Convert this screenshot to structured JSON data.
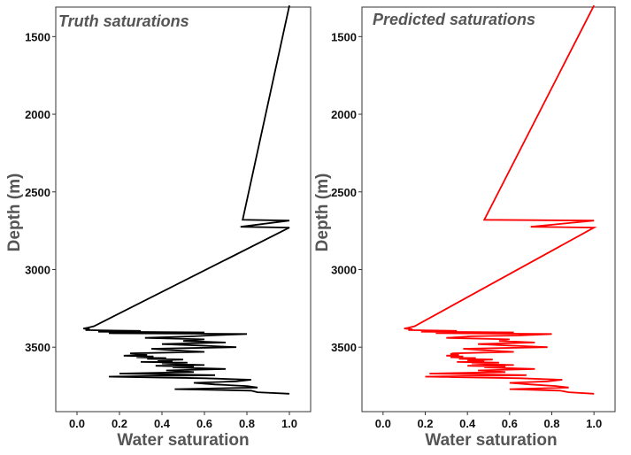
{
  "chart_data": [
    {
      "type": "line",
      "title": "Truth saturations",
      "xlabel": "Water saturation",
      "ylabel": "Depth (m)",
      "xlim": [
        -0.1,
        1.1
      ],
      "ylim": [
        3915,
        1310
      ],
      "y_inverted": true,
      "x_ticks": [
        "0.0",
        "0.2",
        "0.4",
        "0.6",
        "0.8",
        "1.0"
      ],
      "y_ticks": [
        "1500",
        "2000",
        "2500",
        "3000",
        "3500"
      ],
      "grid": false,
      "color": "#000000",
      "series": [
        {
          "depth": [
            1300,
            2680,
            2685,
            2725,
            2730,
            3365,
            3375,
            3380,
            3385,
            3390,
            3395,
            3400,
            3405,
            3410,
            3415,
            3425,
            3430,
            3440,
            3450,
            3460,
            3470,
            3480,
            3490,
            3500,
            3510,
            3520,
            3530,
            3540,
            3545,
            3550,
            3555,
            3560,
            3565,
            3570,
            3575,
            3580,
            3585,
            3590,
            3595,
            3600,
            3605,
            3610,
            3615,
            3620,
            3625,
            3630,
            3640,
            3650,
            3660,
            3670,
            3680,
            3690,
            3700,
            3710,
            3720,
            3730,
            3740,
            3750,
            3760,
            3770,
            3780,
            3790,
            3800
          ],
          "saturation": [
            1.0,
            0.78,
            1.0,
            0.77,
            1.0,
            0.08,
            0.05,
            0.03,
            0.06,
            0.04,
            0.3,
            0.1,
            0.6,
            0.15,
            0.8,
            0.62,
            0.55,
            0.32,
            0.6,
            0.5,
            0.7,
            0.4,
            0.58,
            0.75,
            0.35,
            0.45,
            0.6,
            0.25,
            0.3,
            0.33,
            0.22,
            0.36,
            0.28,
            0.42,
            0.33,
            0.5,
            0.38,
            0.45,
            0.3,
            0.52,
            0.4,
            0.48,
            0.6,
            0.37,
            0.55,
            0.45,
            0.7,
            0.42,
            0.55,
            0.2,
            0.65,
            0.15,
            0.6,
            0.82,
            0.75,
            0.55,
            0.65,
            0.8,
            0.85,
            0.46,
            0.82,
            0.85,
            1.0
          ]
        }
      ]
    },
    {
      "type": "line",
      "title": "Predicted saturations",
      "xlabel": "Water saturation",
      "ylabel": "Depth (m)",
      "xlim": [
        -0.1,
        1.1
      ],
      "ylim": [
        3915,
        1310
      ],
      "y_inverted": true,
      "x_ticks": [
        "0.0",
        "0.2",
        "0.4",
        "0.6",
        "0.8",
        "1.0"
      ],
      "y_ticks": [
        "1500",
        "2000",
        "2500",
        "3000",
        "3500"
      ],
      "grid": false,
      "color": "#ff0000",
      "series": [
        {
          "depth": [
            1300,
            2680,
            2685,
            2725,
            2730,
            3365,
            3375,
            3380,
            3385,
            3390,
            3395,
            3400,
            3405,
            3410,
            3415,
            3425,
            3430,
            3440,
            3450,
            3460,
            3470,
            3480,
            3490,
            3500,
            3510,
            3520,
            3530,
            3540,
            3545,
            3550,
            3555,
            3560,
            3565,
            3570,
            3575,
            3580,
            3585,
            3590,
            3595,
            3600,
            3605,
            3610,
            3615,
            3620,
            3625,
            3630,
            3640,
            3650,
            3660,
            3670,
            3680,
            3690,
            3700,
            3710,
            3720,
            3730,
            3740,
            3750,
            3760,
            3770,
            3780,
            3790,
            3800
          ],
          "saturation": [
            1.0,
            0.48,
            1.0,
            0.7,
            1.0,
            0.15,
            0.12,
            0.1,
            0.14,
            0.12,
            0.35,
            0.18,
            0.62,
            0.25,
            0.8,
            0.64,
            0.42,
            0.3,
            0.6,
            0.55,
            0.72,
            0.45,
            0.6,
            0.78,
            0.38,
            0.48,
            0.62,
            0.33,
            0.32,
            0.36,
            0.3,
            0.38,
            0.32,
            0.44,
            0.36,
            0.52,
            0.4,
            0.48,
            0.35,
            0.55,
            0.42,
            0.5,
            0.62,
            0.4,
            0.58,
            0.48,
            0.72,
            0.45,
            0.58,
            0.22,
            0.68,
            0.2,
            0.65,
            0.85,
            0.78,
            0.6,
            0.7,
            0.82,
            0.88,
            0.6,
            0.84,
            0.88,
            1.0
          ]
        }
      ]
    }
  ]
}
